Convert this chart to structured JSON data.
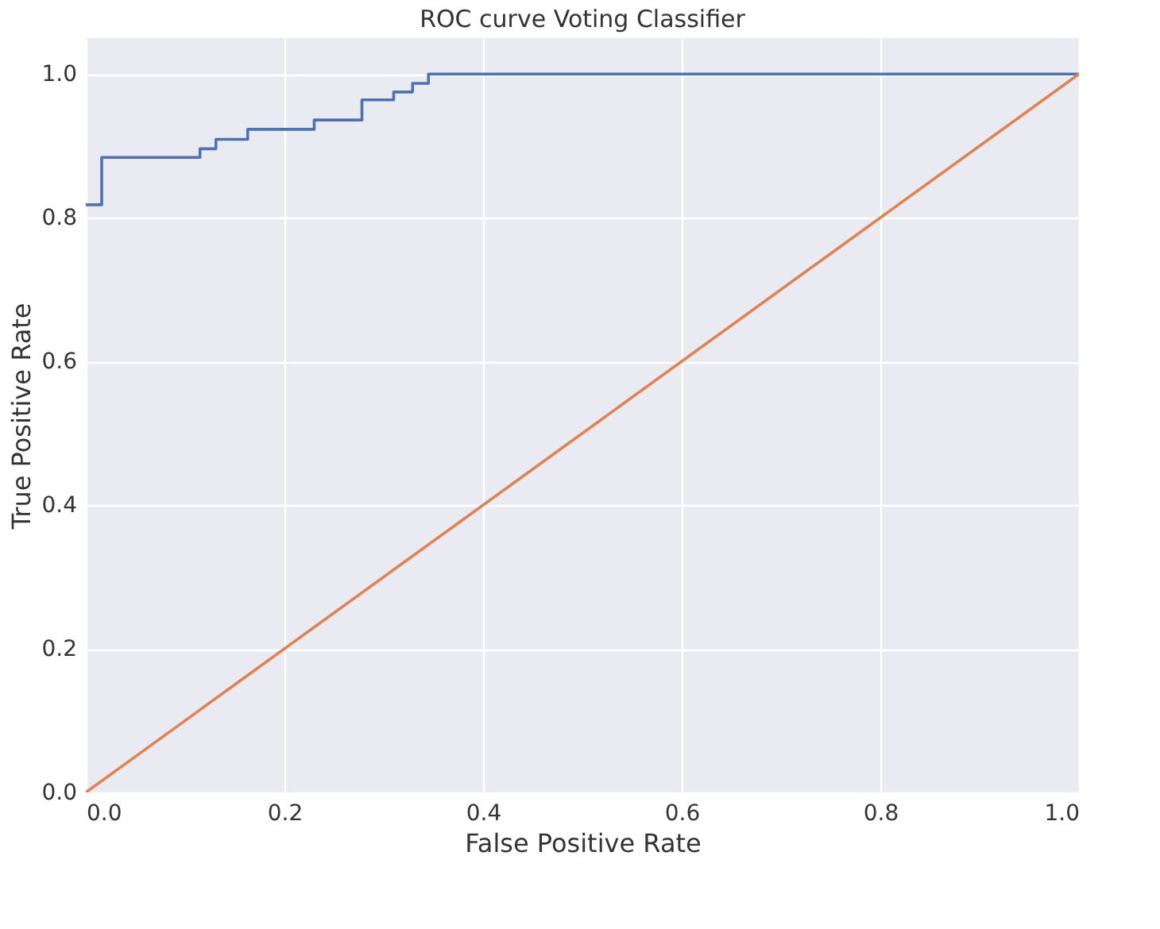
{
  "chart_data": {
    "type": "line",
    "title": "ROC curve Voting Classifier",
    "xlabel": "False Positive Rate",
    "ylabel": "True Positive Rate",
    "series": [
      {
        "type": "step",
        "color": "#4c72b0",
        "x": [
          0,
          0.016,
          0.115,
          0.131,
          0.163,
          0.23,
          0.278,
          0.31,
          0.329,
          0.345,
          1.0
        ],
        "values": [
          0.818,
          0.884,
          0.896,
          0.909,
          0.923,
          0.936,
          0.964,
          0.975,
          0.987,
          1.0,
          1.0
        ]
      },
      {
        "type": "line",
        "color": "#dd8452",
        "x": [
          0,
          1
        ],
        "values": [
          0,
          1
        ]
      }
    ],
    "xlim": [
      0,
      1
    ],
    "ylim": [
      0,
      1.05
    ],
    "xticks": [
      {
        "value": 0,
        "label": "0.0"
      },
      {
        "value": 0.2,
        "label": "0.2"
      },
      {
        "value": 0.4,
        "label": "0.4"
      },
      {
        "value": 0.6,
        "label": "0.6"
      },
      {
        "value": 0.8,
        "label": "0.8"
      },
      {
        "value": 1,
        "label": "1.0"
      }
    ],
    "yticks": [
      {
        "value": 0,
        "label": "0.0"
      },
      0.2,
      0.4,
      0.6,
      0.8,
      {
        "value": 1,
        "label": "1.0"
      }
    ],
    "grid": true,
    "legend": false
  }
}
